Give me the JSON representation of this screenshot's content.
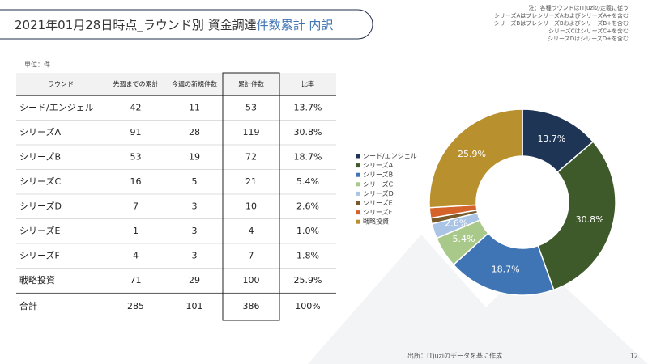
{
  "header": {
    "title_main": "2021年01月28日時点_ラウンド別 資金調達",
    "title_highlight": "件数累計 内訳",
    "notes": [
      "注：各種ラウンドはITjuziの定義に従う",
      "シリーズAはプレシリーズAおよびシリーズA+を含む",
      "シリーズBはプレシリーズBおよびシリーズB+を含む",
      "シリーズCはシリーズC+を含む",
      "シリーズDはシリーズD+を含む"
    ]
  },
  "table": {
    "unit": "単位：件",
    "header": [
      "ラウンド",
      "先週までの累計",
      "今週の新規件数",
      "累計件数",
      "比率"
    ],
    "rows": [
      [
        "シード/エンジェル",
        "42",
        "11",
        "53",
        "13.7%"
      ],
      [
        "シリーズA",
        "91",
        "28",
        "119",
        "30.8%"
      ],
      [
        "シリーズB",
        "53",
        "19",
        "72",
        "18.7%"
      ],
      [
        "シリーズC",
        "16",
        "5",
        "21",
        "5.4%"
      ],
      [
        "シリーズD",
        "7",
        "3",
        "10",
        "2.6%"
      ],
      [
        "シリーズE",
        "1",
        "3",
        "4",
        "1.0%"
      ],
      [
        "シリーズF",
        "4",
        "3",
        "7",
        "1.8%"
      ],
      [
        "戦略投資",
        "71",
        "29",
        "100",
        "25.9%"
      ]
    ],
    "total": [
      "合計",
      "285",
      "101",
      "386",
      "100%"
    ]
  },
  "chart_data": {
    "type": "pie",
    "categories": [
      "シード/エンジェル",
      "シリーズA",
      "シリーズB",
      "シリーズC",
      "シリーズD",
      "シリーズE",
      "シリーズF",
      "戦略投資"
    ],
    "values": [
      13.7,
      30.8,
      18.7,
      5.4,
      2.6,
      1.0,
      1.8,
      25.9
    ],
    "value_labels": [
      "13.7%",
      "30.8%",
      "18.7%",
      "5.4%",
      "2.6%",
      null,
      null,
      "25.9%"
    ],
    "colors": [
      "#1f3556",
      "#3f5a2a",
      "#3f74b5",
      "#a9c98a",
      "#a9c4e4",
      "#7a5a2a",
      "#d4622a",
      "#b8902e"
    ]
  },
  "footer": {
    "source": "出所：ITjuziのデータを基に作成",
    "page": "12"
  }
}
